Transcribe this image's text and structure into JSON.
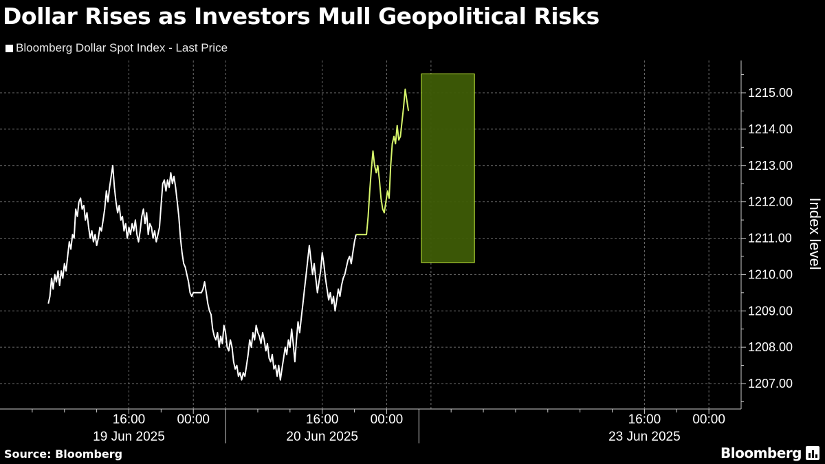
{
  "chart_data": {
    "type": "line",
    "title": "Dollar Rises as Investors Mull Geopolitical Risks",
    "legend": [
      "Bloomberg Dollar Spot Index - Last Price"
    ],
    "ylabel": "Index level",
    "ylim": [
      1206.3,
      1216.0
    ],
    "yticks": [
      1207,
      1208,
      1209,
      1210,
      1211,
      1212,
      1213,
      1214,
      1215
    ],
    "ytick_labels": [
      "1207.00",
      "1208.00",
      "1209.00",
      "1210.00",
      "1211.00",
      "1212.00",
      "1213.00",
      "1214.00",
      "1215.00"
    ],
    "xaxis_hours": [
      0,
      92
    ],
    "time_ticks": [
      {
        "h": 16,
        "label": "16:00"
      },
      {
        "h": 24,
        "label": "00:00"
      },
      {
        "h": 40,
        "label": "16:00"
      },
      {
        "h": 48,
        "label": "00:00"
      },
      {
        "h": 80,
        "label": "16:00"
      },
      {
        "h": 88,
        "label": "00:00"
      }
    ],
    "date_labels": [
      {
        "h": 16,
        "label": "19 Jun 2025"
      },
      {
        "h": 40,
        "label": "20 Jun 2025"
      },
      {
        "h": 80,
        "label": "23 Jun 2025"
      }
    ],
    "day_separators": [
      28,
      52
    ],
    "minor_ticks": [
      4,
      8,
      12,
      20,
      32,
      36,
      44,
      56,
      60,
      64,
      68,
      72,
      76,
      84
    ],
    "dashed_verticals": [
      16,
      24,
      28,
      40,
      48,
      53.5,
      80,
      88
    ],
    "highlight": {
      "h_start": 52.3,
      "h_end": 58.9,
      "y_low": 1210.33,
      "y_high": 1215.52,
      "color": "#c5f03a"
    },
    "series": [
      {
        "name": "Bloomberg Dollar Spot Index - Last Price",
        "points": [
          [
            6.0,
            1209.2
          ],
          [
            6.2,
            1209.4
          ],
          [
            6.4,
            1209.9
          ],
          [
            6.6,
            1209.6
          ],
          [
            6.8,
            1210.0
          ],
          [
            7.0,
            1209.8
          ],
          [
            7.2,
            1210.1
          ],
          [
            7.4,
            1209.7
          ],
          [
            7.6,
            1210.1
          ],
          [
            7.8,
            1209.9
          ],
          [
            8.0,
            1210.3
          ],
          [
            8.2,
            1210.1
          ],
          [
            8.4,
            1210.5
          ],
          [
            8.6,
            1210.9
          ],
          [
            8.8,
            1210.7
          ],
          [
            9.0,
            1211.1
          ],
          [
            9.2,
            1211.0
          ],
          [
            9.4,
            1211.8
          ],
          [
            9.6,
            1211.6
          ],
          [
            9.8,
            1212.0
          ],
          [
            10.0,
            1212.1
          ],
          [
            10.2,
            1211.8
          ],
          [
            10.4,
            1211.9
          ],
          [
            10.6,
            1211.5
          ],
          [
            10.8,
            1211.7
          ],
          [
            11.0,
            1211.3
          ],
          [
            11.2,
            1211.0
          ],
          [
            11.4,
            1211.2
          ],
          [
            11.6,
            1210.9
          ],
          [
            11.8,
            1211.1
          ],
          [
            12.0,
            1210.8
          ],
          [
            12.2,
            1211.0
          ],
          [
            12.4,
            1211.3
          ],
          [
            12.6,
            1211.2
          ],
          [
            12.8,
            1211.5
          ],
          [
            13.0,
            1211.8
          ],
          [
            13.2,
            1212.3
          ],
          [
            13.4,
            1212.0
          ],
          [
            13.6,
            1212.4
          ],
          [
            13.8,
            1212.7
          ],
          [
            14.0,
            1213.0
          ],
          [
            14.2,
            1212.4
          ],
          [
            14.4,
            1212.0
          ],
          [
            14.6,
            1211.7
          ],
          [
            14.8,
            1211.9
          ],
          [
            15.0,
            1211.5
          ],
          [
            15.2,
            1211.6
          ],
          [
            15.4,
            1211.2
          ],
          [
            15.6,
            1211.4
          ],
          [
            15.8,
            1211.0
          ],
          [
            16.0,
            1211.3
          ],
          [
            16.2,
            1211.1
          ],
          [
            16.4,
            1211.4
          ],
          [
            16.6,
            1211.2
          ],
          [
            16.8,
            1211.5
          ],
          [
            17.0,
            1211.1
          ],
          [
            17.2,
            1210.9
          ],
          [
            17.4,
            1211.2
          ],
          [
            17.6,
            1211.6
          ],
          [
            17.8,
            1211.8
          ],
          [
            18.0,
            1211.4
          ],
          [
            18.2,
            1211.7
          ],
          [
            18.4,
            1211.1
          ],
          [
            18.6,
            1211.4
          ],
          [
            18.8,
            1211.3
          ],
          [
            19.0,
            1211.0
          ],
          [
            19.2,
            1211.2
          ],
          [
            19.4,
            1210.9
          ],
          [
            19.6,
            1211.1
          ],
          [
            19.8,
            1211.3
          ],
          [
            20.0,
            1211.9
          ],
          [
            20.2,
            1212.5
          ],
          [
            20.4,
            1212.6
          ],
          [
            20.6,
            1212.3
          ],
          [
            20.8,
            1212.6
          ],
          [
            21.0,
            1212.4
          ],
          [
            21.2,
            1212.8
          ],
          [
            21.4,
            1212.5
          ],
          [
            21.6,
            1212.7
          ],
          [
            21.8,
            1212.4
          ],
          [
            22.0,
            1212.0
          ],
          [
            22.2,
            1211.6
          ],
          [
            22.4,
            1211.0
          ],
          [
            22.6,
            1210.6
          ],
          [
            22.8,
            1210.3
          ],
          [
            23.0,
            1210.2
          ],
          [
            23.2,
            1210.0
          ],
          [
            23.4,
            1209.8
          ],
          [
            23.6,
            1209.5
          ],
          [
            23.8,
            1209.4
          ],
          [
            24.0,
            1209.5
          ],
          [
            25.0,
            1209.5
          ],
          [
            25.2,
            1209.6
          ],
          [
            25.4,
            1209.8
          ],
          [
            25.6,
            1209.5
          ],
          [
            25.8,
            1209.2
          ],
          [
            26.0,
            1209.0
          ],
          [
            26.2,
            1208.9
          ],
          [
            26.4,
            1208.5
          ],
          [
            26.6,
            1208.3
          ],
          [
            26.8,
            1208.2
          ],
          [
            27.0,
            1208.4
          ],
          [
            27.2,
            1208.0
          ],
          [
            27.4,
            1208.3
          ],
          [
            27.6,
            1208.1
          ],
          [
            27.8,
            1208.6
          ],
          [
            28.0,
            1208.4
          ],
          [
            28.2,
            1208.0
          ],
          [
            28.4,
            1207.9
          ],
          [
            28.6,
            1208.2
          ],
          [
            28.8,
            1208.0
          ],
          [
            29.0,
            1207.6
          ],
          [
            29.2,
            1207.4
          ],
          [
            29.4,
            1207.5
          ],
          [
            29.6,
            1207.2
          ],
          [
            29.8,
            1207.3
          ],
          [
            30.0,
            1207.1
          ],
          [
            30.2,
            1207.3
          ],
          [
            30.4,
            1207.2
          ],
          [
            30.6,
            1207.5
          ],
          [
            30.8,
            1207.8
          ],
          [
            31.0,
            1208.2
          ],
          [
            31.2,
            1208.0
          ],
          [
            31.4,
            1208.4
          ],
          [
            31.6,
            1208.2
          ],
          [
            31.8,
            1208.6
          ],
          [
            32.0,
            1208.4
          ],
          [
            32.2,
            1208.3
          ],
          [
            32.4,
            1208.1
          ],
          [
            32.6,
            1208.4
          ],
          [
            32.8,
            1208.2
          ],
          [
            33.0,
            1207.9
          ],
          [
            33.2,
            1208.1
          ],
          [
            33.4,
            1207.7
          ],
          [
            33.6,
            1207.6
          ],
          [
            33.8,
            1207.8
          ],
          [
            34.0,
            1207.4
          ],
          [
            34.2,
            1207.5
          ],
          [
            34.4,
            1207.2
          ],
          [
            34.6,
            1207.5
          ],
          [
            34.8,
            1207.1
          ],
          [
            35.0,
            1207.4
          ],
          [
            35.2,
            1207.7
          ],
          [
            35.4,
            1208.0
          ],
          [
            35.6,
            1207.8
          ],
          [
            35.8,
            1208.2
          ],
          [
            36.0,
            1208.0
          ],
          [
            36.2,
            1208.5
          ],
          [
            36.4,
            1208.1
          ],
          [
            36.6,
            1207.6
          ],
          [
            36.8,
            1208.2
          ],
          [
            37.0,
            1208.7
          ],
          [
            37.2,
            1208.4
          ],
          [
            37.4,
            1208.8
          ],
          [
            37.6,
            1209.2
          ],
          [
            37.8,
            1209.6
          ],
          [
            38.0,
            1210.0
          ],
          [
            38.2,
            1210.4
          ],
          [
            38.4,
            1210.8
          ],
          [
            38.6,
            1210.4
          ],
          [
            38.8,
            1210.0
          ],
          [
            39.0,
            1210.3
          ],
          [
            39.2,
            1209.9
          ],
          [
            39.4,
            1209.5
          ],
          [
            39.6,
            1209.8
          ],
          [
            39.8,
            1210.1
          ],
          [
            40.0,
            1210.6
          ],
          [
            40.2,
            1210.3
          ],
          [
            40.4,
            1209.9
          ],
          [
            40.6,
            1209.6
          ],
          [
            40.8,
            1209.3
          ],
          [
            41.0,
            1209.5
          ],
          [
            41.2,
            1209.2
          ],
          [
            41.4,
            1209.4
          ],
          [
            41.6,
            1209.0
          ],
          [
            41.8,
            1209.3
          ],
          [
            42.0,
            1209.6
          ],
          [
            42.2,
            1209.4
          ],
          [
            42.4,
            1209.7
          ],
          [
            42.6,
            1209.9
          ],
          [
            42.8,
            1210.0
          ],
          [
            43.0,
            1210.2
          ],
          [
            43.2,
            1210.4
          ],
          [
            43.4,
            1210.5
          ],
          [
            43.6,
            1210.3
          ],
          [
            43.8,
            1210.6
          ],
          [
            44.0,
            1210.9
          ],
          [
            44.2,
            1211.1
          ],
          [
            45.5,
            1211.1
          ],
          [
            45.7,
            1211.6
          ],
          [
            45.9,
            1212.3
          ],
          [
            46.1,
            1212.9
          ],
          [
            46.3,
            1213.4
          ],
          [
            46.5,
            1213.0
          ],
          [
            46.7,
            1212.8
          ],
          [
            46.9,
            1213.0
          ],
          [
            47.1,
            1212.6
          ],
          [
            47.3,
            1212.1
          ],
          [
            47.5,
            1211.8
          ],
          [
            47.7,
            1211.7
          ],
          [
            47.9,
            1212.0
          ],
          [
            48.1,
            1212.3
          ],
          [
            48.3,
            1212.1
          ],
          [
            48.5,
            1213.0
          ],
          [
            48.7,
            1213.6
          ],
          [
            48.9,
            1213.8
          ],
          [
            49.1,
            1213.6
          ],
          [
            49.3,
            1214.1
          ],
          [
            49.5,
            1213.7
          ],
          [
            49.7,
            1213.8
          ],
          [
            49.9,
            1214.2
          ],
          [
            50.1,
            1214.6
          ],
          [
            50.3,
            1215.1
          ],
          [
            50.5,
            1214.8
          ],
          [
            50.7,
            1214.5
          ]
        ]
      }
    ]
  },
  "footer": {
    "source": "Source: Bloomberg",
    "brand": "Bloomberg"
  },
  "colors": {
    "background": "#000000",
    "line": "#ffffff",
    "highlight_line": "#d6f56b",
    "highlight_fill": "#3e5c06",
    "grid": "#6e6e6e"
  }
}
